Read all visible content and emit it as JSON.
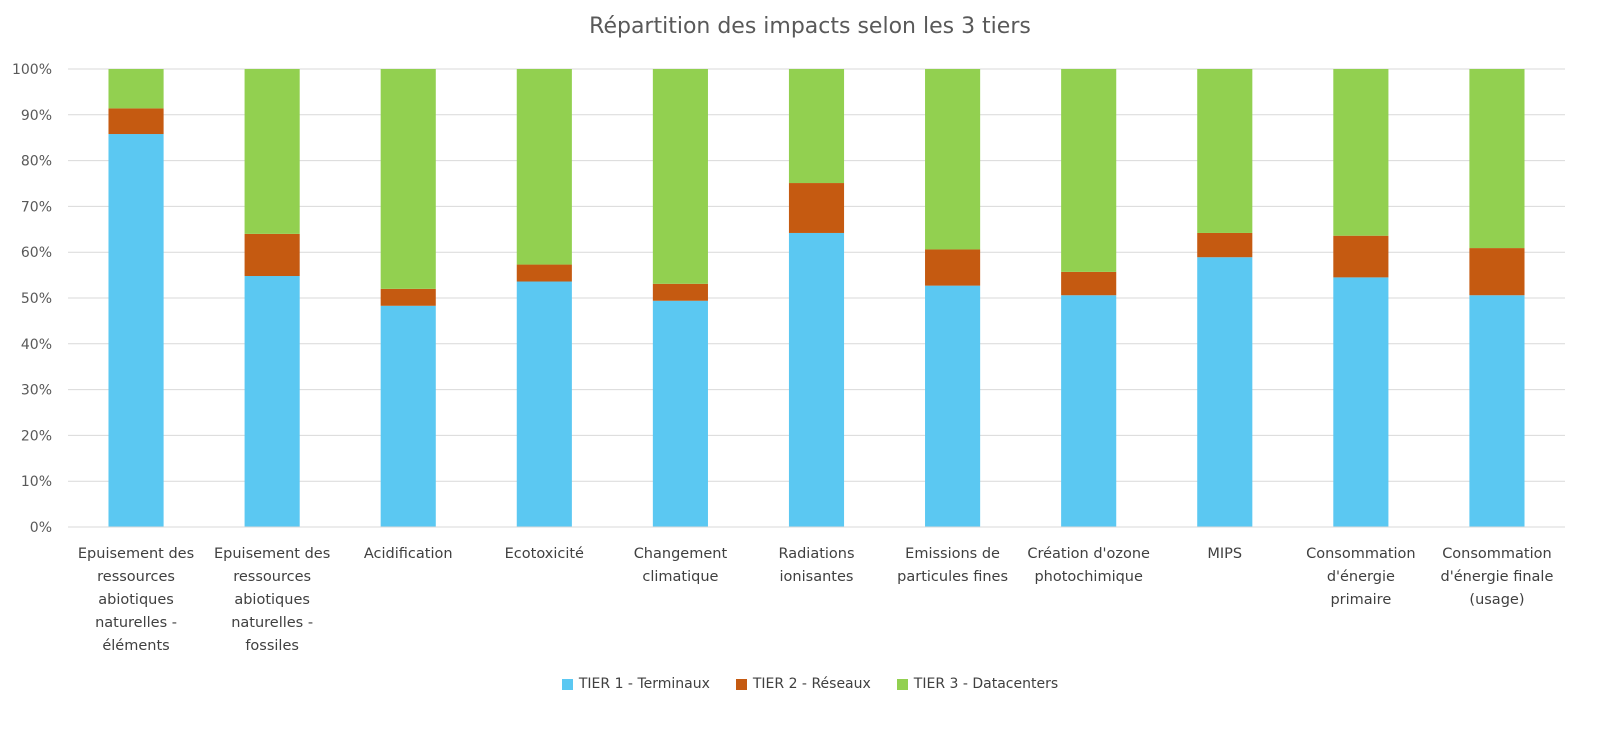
{
  "chart_data": {
    "type": "bar",
    "stacked": true,
    "percent": true,
    "title": "Répartition des impacts selon les 3 tiers",
    "xlabel": "",
    "ylabel": "",
    "ylim": [
      0,
      100
    ],
    "y_ticks": [
      "0%",
      "10%",
      "20%",
      "30%",
      "40%",
      "50%",
      "60%",
      "70%",
      "80%",
      "90%",
      "100%"
    ],
    "grid": true,
    "legend_position": "bottom",
    "categories": [
      [
        "Epuisement des",
        "ressources",
        "abiotiques",
        "naturelles -",
        "éléments"
      ],
      [
        "Epuisement des",
        "ressources",
        "abiotiques",
        "naturelles -",
        "fossiles"
      ],
      [
        "Acidification"
      ],
      [
        "Ecotoxicité"
      ],
      [
        "Changement",
        "climatique"
      ],
      [
        "Radiations",
        "ionisantes"
      ],
      [
        "Emissions de",
        "particules fines"
      ],
      [
        "Création d'ozone",
        "photochimique"
      ],
      [
        "MIPS"
      ],
      [
        "Consommation",
        "d'énergie",
        "primaire"
      ],
      [
        "Consommation",
        "d'énergie finale",
        "(usage)"
      ]
    ],
    "series": [
      {
        "name": "TIER 1 - Terminaux",
        "color": "#5BC8F2",
        "values": [
          85.8,
          54.8,
          48.3,
          53.6,
          49.4,
          64.2,
          52.7,
          50.6,
          58.9,
          54.5,
          50.6
        ]
      },
      {
        "name": "TIER 2 - Réseaux",
        "color": "#C55A11",
        "values": [
          5.6,
          9.2,
          3.7,
          3.7,
          3.7,
          10.9,
          7.9,
          5.1,
          5.3,
          9.1,
          10.3
        ]
      },
      {
        "name": "TIER 3 - Datacenters",
        "color": "#92D050",
        "values": [
          8.6,
          36.0,
          48.0,
          42.7,
          46.9,
          24.9,
          39.4,
          44.3,
          35.8,
          36.4,
          39.1
        ]
      }
    ]
  }
}
